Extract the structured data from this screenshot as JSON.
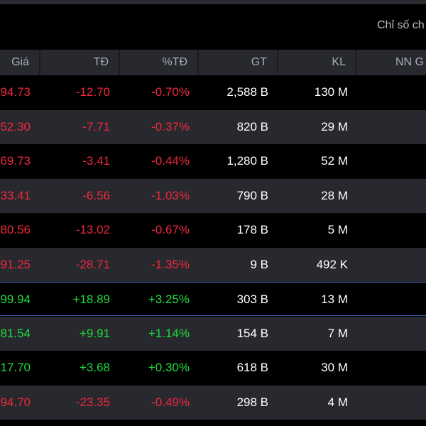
{
  "toolbar": {
    "index_link_label": "Chỉ số ch"
  },
  "colors": {
    "down": "#f0283c",
    "up": "#1fdc3c",
    "neutral": "#ffffff"
  },
  "table": {
    "headers": [
      "Giá",
      "TĐ",
      "%TĐ",
      "GT",
      "KL",
      "NN G"
    ],
    "rows": [
      {
        "price": "94.73",
        "change": "-12.70",
        "pct": "-0.70%",
        "value": "2,588 B",
        "volume": "130 M",
        "dir": "down"
      },
      {
        "price": "52.30",
        "change": "-7.71",
        "pct": "-0.37%",
        "value": "820 B",
        "volume": "29 M",
        "dir": "down"
      },
      {
        "price": "69.73",
        "change": "-3.41",
        "pct": "-0.44%",
        "value": "1,280 B",
        "volume": "52 M",
        "dir": "down"
      },
      {
        "price": "33.41",
        "change": "-6.56",
        "pct": "-1.03%",
        "value": "790 B",
        "volume": "28 M",
        "dir": "down"
      },
      {
        "price": "80.56",
        "change": "-13.02",
        "pct": "-0.67%",
        "value": "178 B",
        "volume": "5 M",
        "dir": "down"
      },
      {
        "price": "91.25",
        "change": "-28.71",
        "pct": "-1.35%",
        "value": "9 B",
        "volume": "492 K",
        "dir": "down"
      },
      {
        "price": "99.94",
        "change": "+18.89",
        "pct": "+3.25%",
        "value": "303 B",
        "volume": "13 M",
        "dir": "up"
      },
      {
        "price": "81.54",
        "change": "+9.91",
        "pct": "+1.14%",
        "value": "154 B",
        "volume": "7 M",
        "dir": "up"
      },
      {
        "price": "17.70",
        "change": "+3.68",
        "pct": "+0.30%",
        "value": "618 B",
        "volume": "30 M",
        "dir": "up"
      },
      {
        "price": "94.70",
        "change": "-23.35",
        "pct": "-0.49%",
        "value": "298 B",
        "volume": "4 M",
        "dir": "down"
      }
    ]
  }
}
